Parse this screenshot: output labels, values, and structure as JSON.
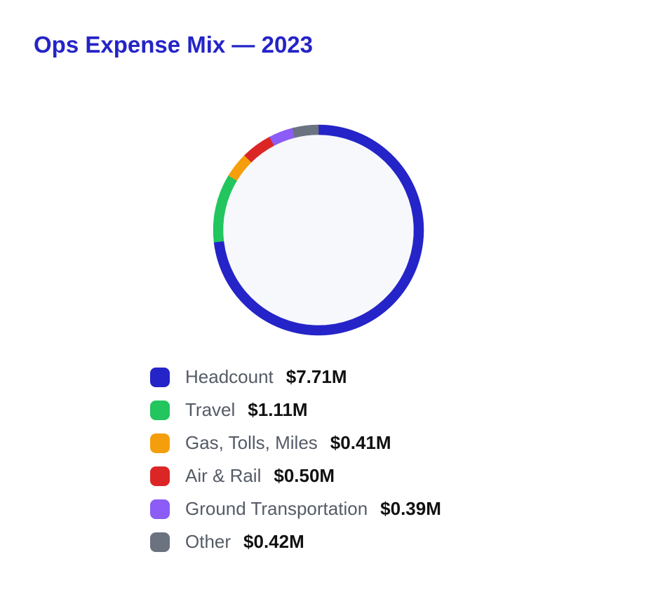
{
  "chart_data": {
    "type": "pie",
    "variant": "donut",
    "title": "Ops Expense Mix — 2023",
    "categories": [
      "Headcount",
      "Travel",
      "Gas, Tolls, Miles",
      "Air & Rail",
      "Ground Transportation",
      "Other"
    ],
    "values": [
      7.71,
      1.11,
      0.41,
      0.5,
      0.39,
      0.42
    ],
    "value_labels": [
      "$7.71M",
      "$1.11M",
      "$0.41M",
      "$0.50M",
      "$0.39M",
      "$0.42M"
    ],
    "colors": [
      "#2424c8",
      "#22c55e",
      "#f59e0b",
      "#dc2626",
      "#8b5cf6",
      "#6b7280"
    ],
    "center_fill": "#f7f8fc",
    "legend_position": "bottom",
    "start": "top",
    "direction": "clockwise"
  }
}
